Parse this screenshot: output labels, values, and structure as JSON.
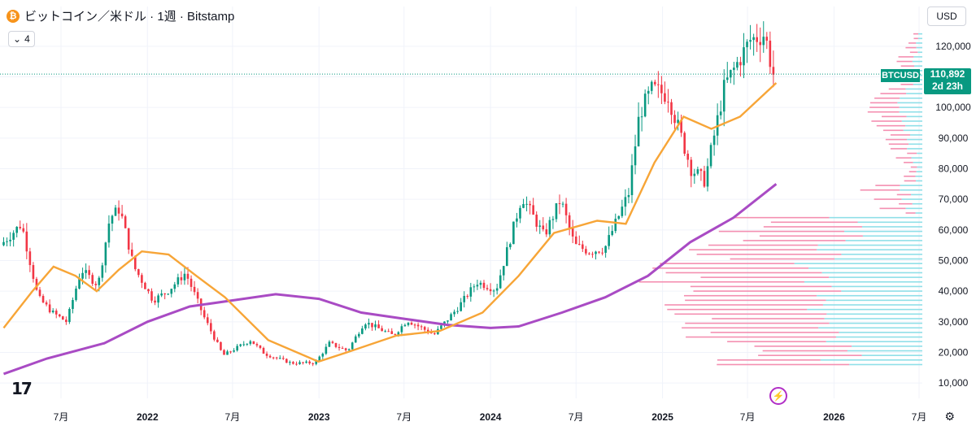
{
  "header": {
    "symbol_icon": "bitcoin-icon",
    "coin_glyph": "₿",
    "title": "ビットコイン／米ドル · 1週 · Bitstamp"
  },
  "indicators": {
    "count": "4",
    "chevron_icon": "chevron-down-icon"
  },
  "currency": "USD",
  "price_tag": {
    "symbol": "BTCUSD",
    "price": "110,892",
    "countdown": "2d 23h"
  },
  "logo": "17",
  "colors": {
    "up": "#089981",
    "down": "#f23645",
    "ma_short": "#f7a537",
    "ma_long": "#a94bc4",
    "vp_up": "#8fdfe8",
    "vp_down": "#f48fb1",
    "price_line": "#089981",
    "grid": "#f0f3fa"
  },
  "chart_data": {
    "type": "candlestick",
    "symbol": "BTCUSD",
    "interval": "1W",
    "exchange": "Bitstamp",
    "last_price": 110892,
    "ylim": [
      5000,
      125000
    ],
    "y_ticks": [
      10000,
      20000,
      30000,
      40000,
      50000,
      60000,
      70000,
      80000,
      90000,
      100000,
      110000,
      120000
    ],
    "y_tick_labels": [
      "10,000",
      "20,000",
      "30,000",
      "40,000",
      "50,000",
      "60,000",
      "70,000",
      "80,000",
      "90,000",
      "100,000",
      "110,000",
      "120,000"
    ],
    "x_range": [
      "2021-03",
      "2026-07"
    ],
    "x_ticks": [
      {
        "date": "2021-07",
        "label": "7月"
      },
      {
        "date": "2022-01",
        "label": "2022"
      },
      {
        "date": "2022-07",
        "label": "7月"
      },
      {
        "date": "2023-01",
        "label": "2023"
      },
      {
        "date": "2023-07",
        "label": "7月"
      },
      {
        "date": "2024-01",
        "label": "2024"
      },
      {
        "date": "2024-07",
        "label": "7月"
      },
      {
        "date": "2025-01",
        "label": "2025"
      },
      {
        "date": "2025-07",
        "label": "7月"
      },
      {
        "date": "2026-01",
        "label": "2026"
      },
      {
        "date": "2026-07",
        "label": "7月"
      }
    ],
    "price_path": [
      [
        "2021-03-01",
        55000
      ],
      [
        "2021-04-15",
        62000
      ],
      [
        "2021-05-20",
        38000
      ],
      [
        "2021-06-20",
        33000
      ],
      [
        "2021-07-20",
        30000
      ],
      [
        "2021-08-20",
        47000
      ],
      [
        "2021-09-25",
        42000
      ],
      [
        "2021-10-20",
        64000
      ],
      [
        "2021-11-10",
        67000
      ],
      [
        "2021-12-10",
        48000
      ],
      [
        "2022-01-20",
        37000
      ],
      [
        "2022-02-20",
        40000
      ],
      [
        "2022-03-30",
        46000
      ],
      [
        "2022-05-10",
        31000
      ],
      [
        "2022-06-18",
        19000
      ],
      [
        "2022-08-15",
        24000
      ],
      [
        "2022-09-15",
        19500
      ],
      [
        "2022-11-10",
        16500
      ],
      [
        "2022-12-31",
        16600
      ],
      [
        "2023-01-30",
        23000
      ],
      [
        "2023-03-10",
        20500
      ],
      [
        "2023-04-15",
        30000
      ],
      [
        "2023-06-15",
        25500
      ],
      [
        "2023-07-15",
        30500
      ],
      [
        "2023-09-10",
        25800
      ],
      [
        "2023-10-30",
        34500
      ],
      [
        "2023-12-10",
        43000
      ],
      [
        "2024-01-20",
        40500
      ],
      [
        "2024-02-28",
        62000
      ],
      [
        "2024-03-15",
        71000
      ],
      [
        "2024-05-01",
        58000
      ],
      [
        "2024-06-05",
        70000
      ],
      [
        "2024-07-05",
        55000
      ],
      [
        "2024-08-05",
        53000
      ],
      [
        "2024-09-07",
        54000
      ],
      [
        "2024-10-28",
        72000
      ],
      [
        "2024-11-20",
        98000
      ],
      [
        "2024-12-17",
        106000
      ],
      [
        "2025-01-20",
        104000
      ],
      [
        "2025-03-10",
        80000
      ],
      [
        "2025-04-08",
        76000
      ],
      [
        "2025-05-20",
        107000
      ],
      [
        "2025-07-14",
        122000
      ],
      [
        "2025-08-14",
        124000
      ],
      [
        "2025-08-31",
        110892
      ]
    ],
    "ma_short_path": [
      [
        "2021-03-01",
        28000
      ],
      [
        "2021-05-01",
        40000
      ],
      [
        "2021-06-15",
        48000
      ],
      [
        "2021-08-01",
        45000
      ],
      [
        "2021-09-15",
        40000
      ],
      [
        "2021-11-01",
        47000
      ],
      [
        "2021-12-20",
        53000
      ],
      [
        "2022-02-15",
        52000
      ],
      [
        "2022-04-15",
        45000
      ],
      [
        "2022-06-15",
        38000
      ],
      [
        "2022-09-15",
        24000
      ],
      [
        "2022-12-31",
        17000
      ],
      [
        "2023-03-01",
        20000
      ],
      [
        "2023-06-15",
        25500
      ],
      [
        "2023-09-15",
        27000
      ],
      [
        "2023-12-15",
        33000
      ],
      [
        "2024-03-01",
        45000
      ],
      [
        "2024-05-15",
        59000
      ],
      [
        "2024-08-15",
        63000
      ],
      [
        "2024-10-15",
        62000
      ],
      [
        "2024-12-15",
        82000
      ],
      [
        "2025-02-15",
        97000
      ],
      [
        "2025-04-15",
        93000
      ],
      [
        "2025-06-15",
        97000
      ],
      [
        "2025-08-31",
        108000
      ]
    ],
    "ma_long_path": [
      [
        "2021-03-01",
        13000
      ],
      [
        "2021-06-01",
        18000
      ],
      [
        "2021-10-01",
        23000
      ],
      [
        "2022-01-01",
        30000
      ],
      [
        "2022-04-01",
        35000
      ],
      [
        "2022-07-01",
        37000
      ],
      [
        "2022-10-01",
        39000
      ],
      [
        "2023-01-01",
        37500
      ],
      [
        "2023-04-01",
        33000
      ],
      [
        "2023-07-01",
        31000
      ],
      [
        "2023-10-01",
        29000
      ],
      [
        "2024-01-01",
        28000
      ],
      [
        "2024-03-01",
        28500
      ],
      [
        "2024-06-01",
        33000
      ],
      [
        "2024-09-01",
        38000
      ],
      [
        "2024-12-01",
        45000
      ],
      [
        "2025-03-01",
        56000
      ],
      [
        "2025-06-01",
        64000
      ],
      [
        "2025-08-31",
        75000
      ]
    ]
  }
}
